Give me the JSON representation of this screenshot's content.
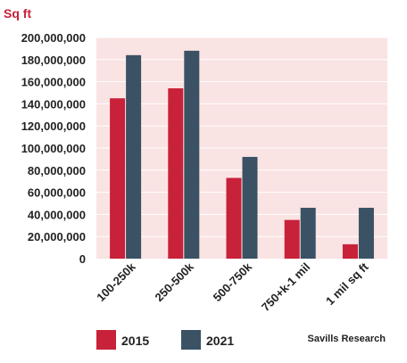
{
  "chart_data": {
    "type": "bar",
    "ylabel": "Sq ft",
    "categories": [
      "100-250k",
      "250-500k",
      "500-750k",
      "750+k-1 mil",
      "1 mil sq ft"
    ],
    "series": [
      {
        "name": "2015",
        "color": "#c8213a",
        "values": [
          145000000,
          154000000,
          73000000,
          35000000,
          13000000
        ]
      },
      {
        "name": "2021",
        "color": "#3b5264",
        "values": [
          184000000,
          188000000,
          92000000,
          46000000,
          46000000
        ]
      }
    ],
    "ylim": [
      0,
      200000000
    ],
    "yticks": [
      "0",
      "20,000,000",
      "40,000,000",
      "60,000,000",
      "80,000,000",
      "100,000,000",
      "120,000,000",
      "140,000,000",
      "160,000,000",
      "180,000,000",
      "200,000,000"
    ],
    "grid": true,
    "legend": "bottom-left",
    "plot_background": "#fae3e3",
    "axis_label_color": "#c8213a",
    "source": "Savills Research"
  }
}
